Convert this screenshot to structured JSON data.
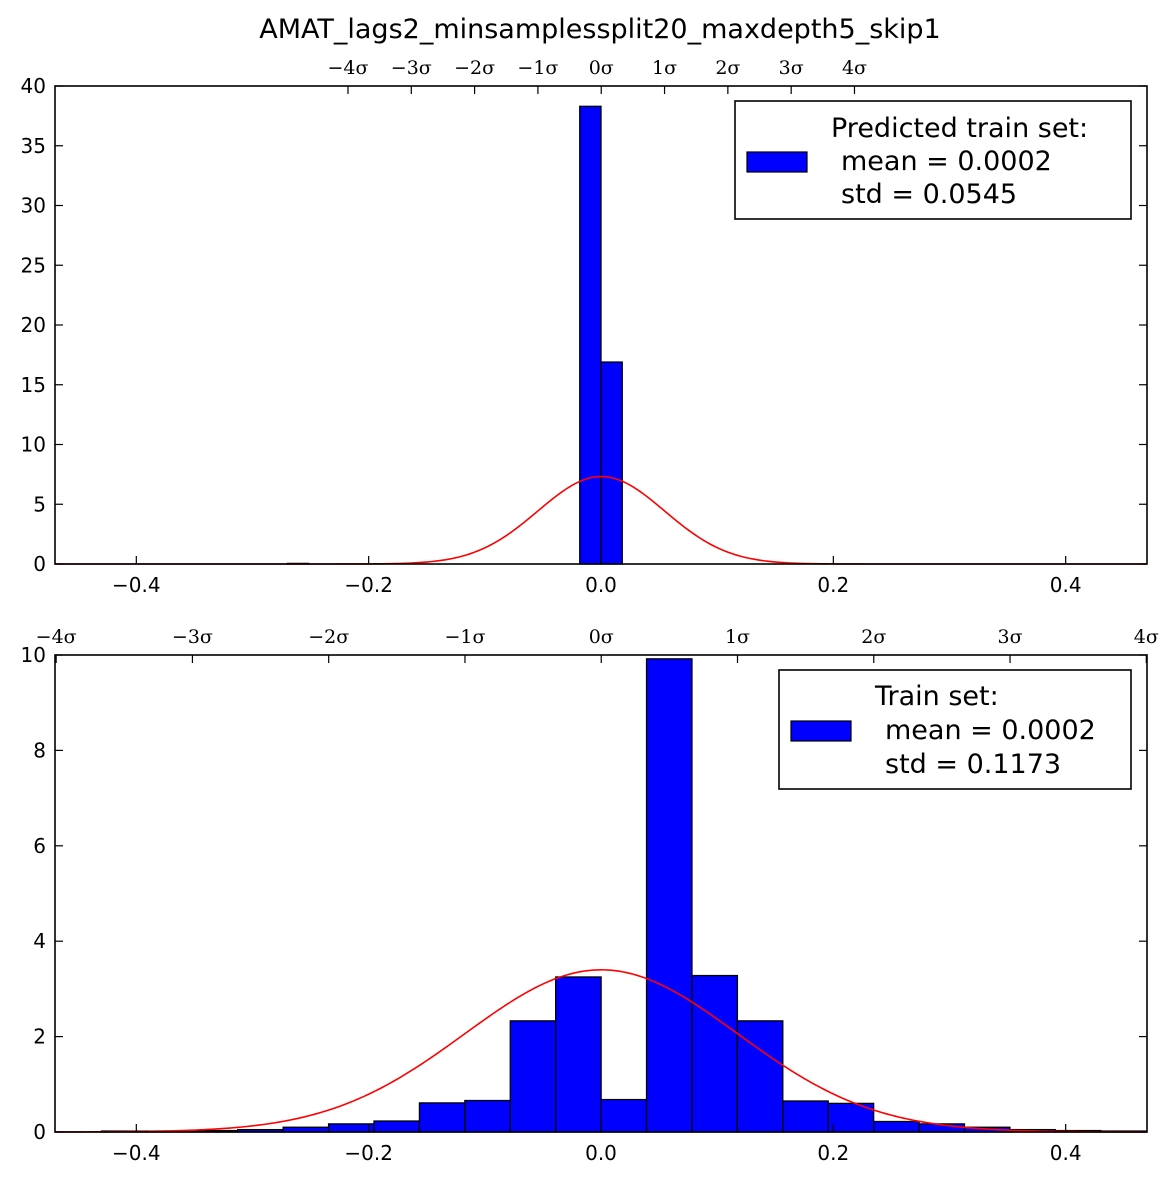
{
  "title": "AMAT_lags2_minsamplessplit20_maxdepth5_skip1",
  "chart_data": [
    {
      "type": "bar",
      "subtype": "histogram",
      "xlim": [
        -0.47,
        0.47
      ],
      "ylim": [
        0,
        40
      ],
      "xticks": [
        -0.4,
        -0.2,
        0.0,
        0.2,
        0.4
      ],
      "xtick_labels": [
        "−0.4",
        "−0.2",
        "0.0",
        "0.2",
        "0.4"
      ],
      "yticks": [
        0,
        5,
        10,
        15,
        20,
        25,
        30,
        35,
        40
      ],
      "ytick_labels": [
        "0",
        "5",
        "10",
        "15",
        "20",
        "25",
        "30",
        "35",
        "40"
      ],
      "sigma_ticks": [
        -4,
        -3,
        -2,
        -1,
        0,
        1,
        2,
        3,
        4
      ],
      "sigma_labels": [
        "−4σ",
        "−3σ",
        "−2σ",
        "−1σ",
        "0σ",
        "1σ",
        "2σ",
        "3σ",
        "4σ"
      ],
      "bin_width": 0.0183,
      "bins": [
        {
          "x0": -0.0183,
          "value": 38.3
        },
        {
          "x0": 0.0,
          "value": 16.9
        },
        {
          "x0": -0.27,
          "value": 0.05
        }
      ],
      "mean": 0.0002,
      "std": 0.0545,
      "curve_peak": 7.32,
      "legend": {
        "title": "Predicted train set:",
        "line1": "mean = 0.0002",
        "line2": "std = 0.0545",
        "position": "upper right"
      },
      "colors": {
        "bar": "#0000ff",
        "curve": "#ff0000"
      }
    },
    {
      "type": "bar",
      "subtype": "histogram",
      "xlim": [
        -0.47,
        0.47
      ],
      "ylim": [
        0,
        10
      ],
      "xticks": [
        -0.4,
        -0.2,
        0.0,
        0.2,
        0.4
      ],
      "xtick_labels": [
        "−0.4",
        "−0.2",
        "0.0",
        "0.2",
        "0.4"
      ],
      "yticks": [
        0,
        2,
        4,
        6,
        8,
        10
      ],
      "ytick_labels": [
        "0",
        "2",
        "4",
        "6",
        "8",
        "10"
      ],
      "sigma_ticks": [
        -4,
        -3,
        -2,
        -1,
        0,
        1,
        2,
        3,
        4
      ],
      "sigma_labels": [
        "−4σ",
        "−3σ",
        "−2σ",
        "−1σ",
        "0σ",
        "1σ",
        "2σ",
        "3σ",
        "4σ"
      ],
      "bin_width": 0.0391,
      "bin_start": -0.43,
      "bin_values": [
        0.02,
        0.02,
        0.03,
        0.05,
        0.1,
        0.17,
        0.23,
        0.61,
        0.66,
        2.33,
        3.25,
        0.68,
        9.92,
        3.28,
        2.33,
        0.65,
        0.6,
        0.22,
        0.17,
        0.1,
        0.05,
        0.03,
        0.02
      ],
      "mean": 0.0002,
      "std": 0.1173,
      "curve_peak": 3.4,
      "legend": {
        "title": "Train set:",
        "line1": "mean = 0.0002",
        "line2": "std = 0.1173",
        "position": "upper right"
      },
      "colors": {
        "bar": "#0000ff",
        "curve": "#ff0000"
      }
    }
  ]
}
